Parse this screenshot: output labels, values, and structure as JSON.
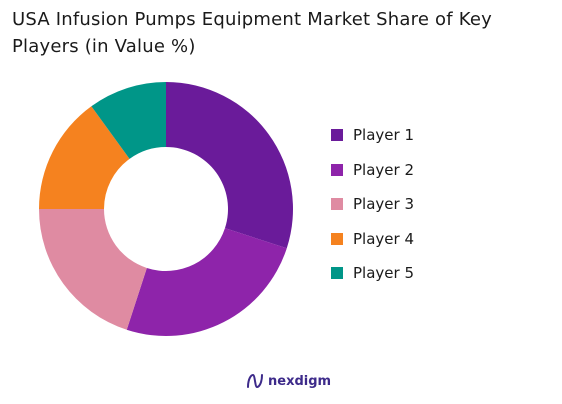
{
  "chart_data": {
    "type": "pie",
    "title": "USA Infusion Pumps Equipment Market Share of Key Players (in Value %)",
    "donut": true,
    "start": "top",
    "direction": "clockwise",
    "legend_position": "right",
    "series": [
      {
        "name": "Player 1",
        "value": 30,
        "color": "#6a1b9a"
      },
      {
        "name": "Player 2",
        "value": 25,
        "color": "#8e24aa"
      },
      {
        "name": "Player 3",
        "value": 20,
        "color": "#df8ba2"
      },
      {
        "name": "Player 4",
        "value": 15,
        "color": "#f5821f"
      },
      {
        "name": "Player 5",
        "value": 10,
        "color": "#009688"
      }
    ]
  },
  "footer": {
    "brand": "nexdigm",
    "brand_icon": "nexdigm-logo-icon"
  }
}
